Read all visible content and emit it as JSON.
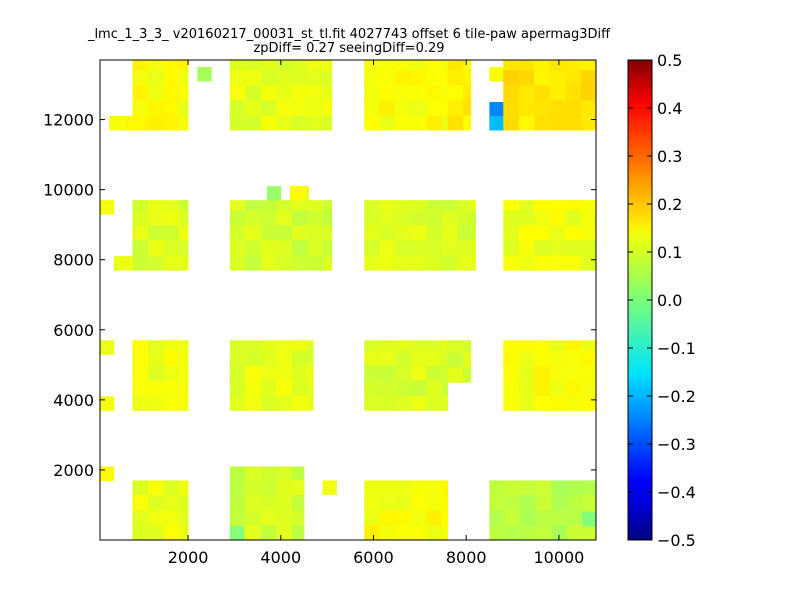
{
  "chart_data": {
    "type": "heatmap",
    "title": "_lmc_1_3_3_ v20160217_00031_st_tl.fit 4027743 offset 6 tile-paw apermag3Diff",
    "subtitle": "zpDiff= 0.27 seeingDiff=0.29",
    "xlabel": "",
    "ylabel": "",
    "xlim": [
      100,
      10800
    ],
    "ylim": [
      0,
      13700
    ],
    "xticks": [
      "2000",
      "4000",
      "6000",
      "8000",
      "10000"
    ],
    "yticks": [
      "2000",
      "4000",
      "6000",
      "8000",
      "10000",
      "12000"
    ],
    "cell_size": [
      335,
      430
    ],
    "colormap": "jet",
    "colorbar": {
      "min": -0.5,
      "max": 0.5,
      "ticks": [
        "0.5",
        "0.4",
        "0.3",
        "0.2",
        "0.1",
        "0.0",
        "−0.1",
        "−0.2",
        "−0.3",
        "−0.4",
        "−0.5"
      ]
    },
    "grid": false,
    "blocks": [
      {
        "x": [
          800,
          2000
        ],
        "y": [
          11700,
          13700
        ],
        "value": 0.12
      },
      {
        "x": [
          2200,
          2500
        ],
        "y": [
          13100,
          13500
        ],
        "value": 0.05
      },
      {
        "x": [
          300,
          800
        ],
        "y": [
          11700,
          12100
        ],
        "value": 0.12
      },
      {
        "x": [
          2900,
          5100
        ],
        "y": [
          11700,
          13700
        ],
        "value": 0.1
      },
      {
        "x": [
          5800,
          7600
        ],
        "y": [
          11700,
          13700
        ],
        "value": 0.12
      },
      {
        "x": [
          7600,
          8100
        ],
        "y": [
          11700,
          13700
        ],
        "value": 0.14
      },
      {
        "x": [
          8500,
          8800
        ],
        "y": [
          13100,
          13500
        ],
        "value": 0.1
      },
      {
        "x": [
          8500,
          8800
        ],
        "y": [
          12100,
          12500
        ],
        "value": -0.25
      },
      {
        "x": [
          8500,
          8800
        ],
        "y": [
          11700,
          12100
        ],
        "value": -0.18
      },
      {
        "x": [
          8800,
          10800
        ],
        "y": [
          11700,
          13700
        ],
        "value": 0.15
      },
      {
        "x": [
          800,
          2000
        ],
        "y": [
          7700,
          9700
        ],
        "value": 0.09
      },
      {
        "x": [
          400,
          800
        ],
        "y": [
          7700,
          8100
        ],
        "value": 0.1
      },
      {
        "x": [
          100,
          400
        ],
        "y": [
          9300,
          9700
        ],
        "value": 0.13
      },
      {
        "x": [
          2900,
          5100
        ],
        "y": [
          7700,
          9700
        ],
        "value": 0.08
      },
      {
        "x": [
          3700,
          4000
        ],
        "y": [
          9700,
          10100
        ],
        "value": 0.04
      },
      {
        "x": [
          4200,
          4600
        ],
        "y": [
          9700,
          10100
        ],
        "value": 0.12
      },
      {
        "x": [
          5800,
          8200
        ],
        "y": [
          7700,
          9700
        ],
        "value": 0.09
      },
      {
        "x": [
          8800,
          10800
        ],
        "y": [
          7700,
          9700
        ],
        "value": 0.11
      },
      {
        "x": [
          800,
          2000
        ],
        "y": [
          3700,
          5700
        ],
        "value": 0.11
      },
      {
        "x": [
          100,
          400
        ],
        "y": [
          5300,
          5700
        ],
        "value": 0.11
      },
      {
        "x": [
          100,
          400
        ],
        "y": [
          3700,
          4100
        ],
        "value": 0.13
      },
      {
        "x": [
          2900,
          4700
        ],
        "y": [
          3700,
          5700
        ],
        "value": 0.1
      },
      {
        "x": [
          5800,
          7600
        ],
        "y": [
          3700,
          5700
        ],
        "value": 0.09
      },
      {
        "x": [
          7600,
          8100
        ],
        "y": [
          4500,
          5700
        ],
        "value": 0.09
      },
      {
        "x": [
          8800,
          10800
        ],
        "y": [
          3700,
          5700
        ],
        "value": 0.12
      },
      {
        "x": [
          800,
          2000
        ],
        "y": [
          0,
          1700
        ],
        "value": 0.11
      },
      {
        "x": [
          100,
          400
        ],
        "y": [
          1700,
          2100
        ],
        "value": 0.13
      },
      {
        "x": [
          2900,
          4500
        ],
        "y": [
          0,
          2100
        ],
        "value": 0.08
      },
      {
        "x": [
          2900,
          3200
        ],
        "y": [
          0,
          400
        ],
        "value": 0.0
      },
      {
        "x": [
          4900,
          5200
        ],
        "y": [
          1300,
          1700
        ],
        "value": 0.1
      },
      {
        "x": [
          5800,
          7600
        ],
        "y": [
          0,
          1700
        ],
        "value": 0.12
      },
      {
        "x": [
          8500,
          10800
        ],
        "y": [
          0,
          1700
        ],
        "value": 0.06
      },
      {
        "x": [
          10500,
          10800
        ],
        "y": [
          400,
          800
        ],
        "value": 0.02
      }
    ]
  }
}
